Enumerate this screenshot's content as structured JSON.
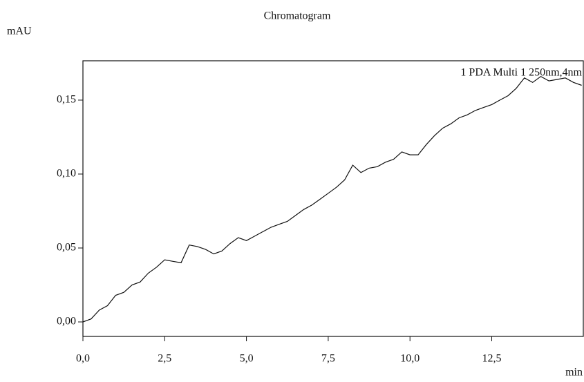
{
  "chart_data": {
    "type": "line",
    "title": "Chromatogram",
    "y_label": "mAU",
    "x_label": "min",
    "series": [
      {
        "name": "1 PDA Multi 1 250nm,4nm",
        "color": "#111111",
        "values": [
          0.0,
          0.002,
          0.008,
          0.011,
          0.018,
          0.02,
          0.025,
          0.027,
          0.033,
          0.037,
          0.042,
          0.041,
          0.04,
          0.052,
          0.051,
          0.049,
          0.046,
          0.048,
          0.053,
          0.057,
          0.055,
          0.058,
          0.061,
          0.064,
          0.066,
          0.068,
          0.072,
          0.076,
          0.079,
          0.083,
          0.087,
          0.091,
          0.096,
          0.106,
          0.101,
          0.104,
          0.105,
          0.108,
          0.11,
          0.115,
          0.113,
          0.113,
          0.12,
          0.126,
          0.131,
          0.134,
          0.138,
          0.14,
          0.143,
          0.145,
          0.147,
          0.15,
          0.153,
          0.158,
          0.165,
          0.162,
          0.166,
          0.163,
          0.164,
          0.165,
          0.162,
          0.16
        ]
      }
    ],
    "x": [
      0,
      0.25,
      0.5,
      0.75,
      1,
      1.25,
      1.5,
      1.75,
      2,
      2.25,
      2.5,
      2.75,
      3,
      3.25,
      3.5,
      3.75,
      4,
      4.25,
      4.5,
      4.75,
      5,
      5.25,
      5.5,
      5.75,
      6,
      6.25,
      6.5,
      6.75,
      7,
      7.25,
      7.5,
      7.75,
      8,
      8.25,
      8.5,
      8.75,
      9,
      9.25,
      9.5,
      9.75,
      10,
      10.25,
      10.5,
      10.75,
      11,
      11.25,
      11.5,
      11.75,
      12,
      12.25,
      12.5,
      12.75,
      13,
      13.25,
      13.5,
      13.75,
      14,
      14.25,
      14.5,
      14.75,
      15,
      15.25
    ],
    "xlim": [
      0,
      15.3
    ],
    "xticks": [
      {
        "value": 0,
        "label": "0,0"
      },
      {
        "value": 2.5,
        "label": "2,5"
      },
      {
        "value": 5,
        "label": "5,0"
      },
      {
        "value": 7.5,
        "label": "7,5"
      },
      {
        "value": 10,
        "label": "10,0"
      },
      {
        "value": 12.5,
        "label": "12,5"
      }
    ],
    "ylim": [
      -0.0098,
      0.1766
    ],
    "yticks": [
      {
        "value": 0,
        "label": "0,00"
      },
      {
        "value": 0.05,
        "label": "0,05"
      },
      {
        "value": 0.1,
        "label": "0,10"
      },
      {
        "value": 0.15,
        "label": "0,15"
      }
    ],
    "grid": false,
    "legend": "top-right"
  }
}
